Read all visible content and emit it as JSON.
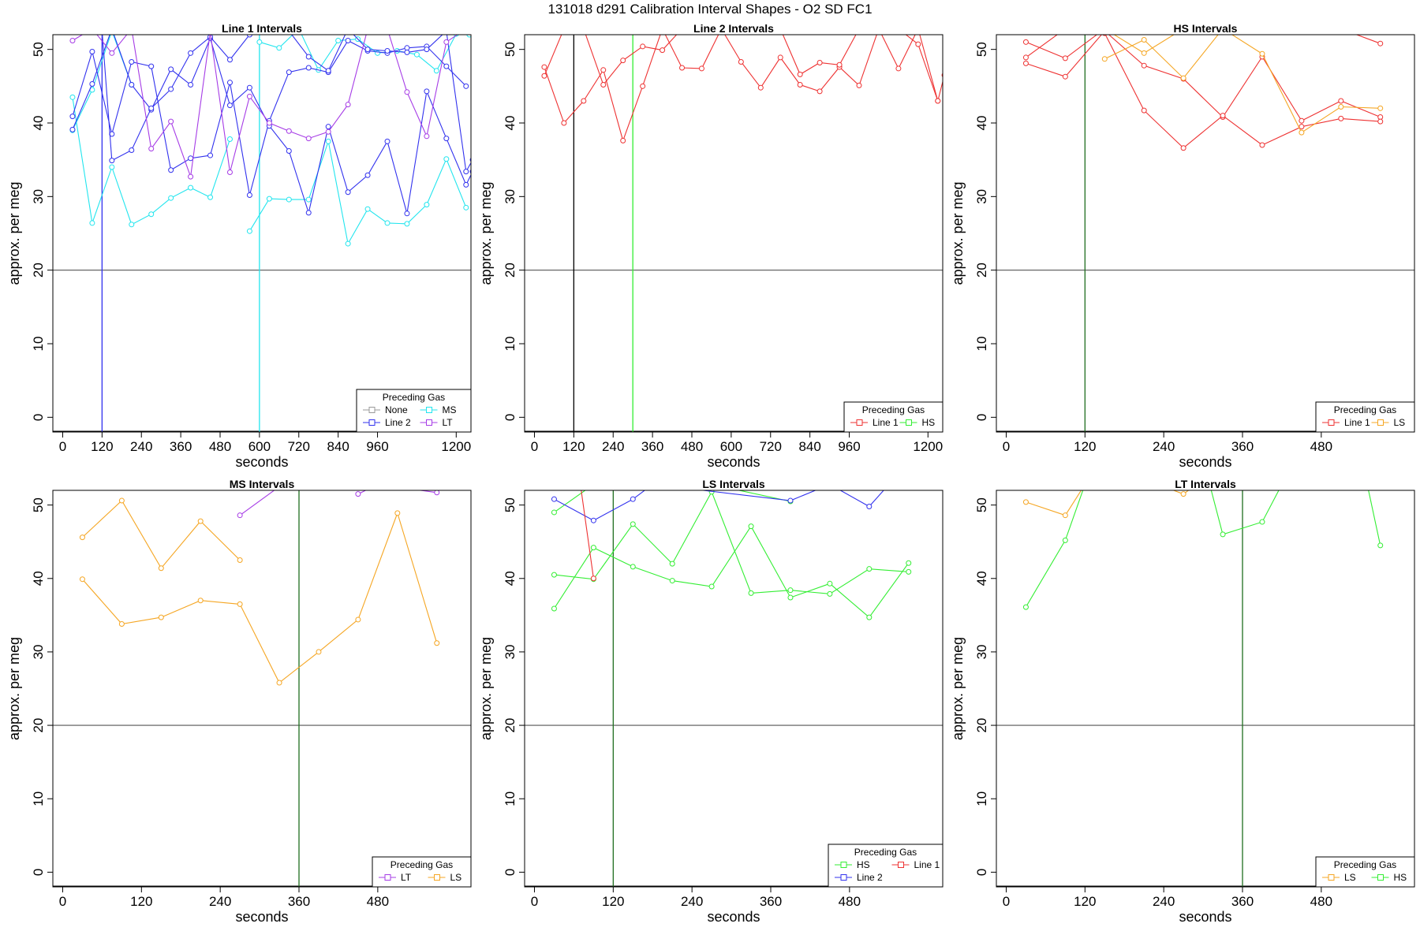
{
  "figure_title": "131018   d291   Calibration Interval Shapes - O2 SD FC1",
  "colors": {
    "None": "#999999",
    "MS": "#22e5ee",
    "Line 2": "#3232ee",
    "LT": "#a63ce6",
    "Line 1": "#ee3232",
    "HS": "#33ee33",
    "LS": "#f5a623",
    "black": "#000000",
    "dark_green": "#1f6f1f",
    "ref": "#555555"
  },
  "chart_data": [
    {
      "type": "line",
      "title": "Line 1 Intervals",
      "xlabel": "seconds",
      "ylabel": "approx. per meg",
      "xlim": [
        -30,
        1245
      ],
      "ylim": [
        -2,
        52
      ],
      "xticks": [
        0,
        120,
        240,
        360,
        480,
        600,
        720,
        840,
        960,
        1200
      ],
      "yticks": [
        0,
        10,
        20,
        30,
        40,
        50
      ],
      "hline": 20,
      "vlines": [
        {
          "x": 120,
          "color": "Line 2"
        },
        {
          "x": 600,
          "color": "MS"
        }
      ],
      "legend": {
        "title": "Preceding Gas",
        "columns": 2,
        "items": [
          "None",
          "MS",
          "Line 2",
          "LT"
        ]
      },
      "series": [
        {
          "name": "MS",
          "color": "MS",
          "x": [
            30,
            90,
            150,
            210,
            270,
            330,
            390,
            450,
            510
          ],
          "y": [
            43.5,
            26.4,
            34.0,
            26.2,
            27.6,
            29.8,
            31.2,
            29.9,
            37.8
          ]
        },
        {
          "name": "MS",
          "color": "MS",
          "x": [
            570,
            630,
            690,
            750,
            810,
            870,
            930,
            990,
            1050,
            1110,
            1170,
            1230
          ],
          "y": [
            25.3,
            29.7,
            29.6,
            29.6,
            37.5,
            23.6,
            28.3,
            26.4,
            26.3,
            28.9,
            35.1,
            28.5
          ]
        },
        {
          "name": "MS",
          "color": "MS",
          "x": [
            30,
            90,
            150,
            210
          ],
          "y": [
            39.0,
            44.5,
            52.5,
            45.2
          ]
        },
        {
          "name": "MS",
          "color": "MS",
          "x": [
            600,
            660,
            720,
            780,
            840,
            900,
            960,
            1020,
            1080,
            1140,
            1200,
            1240
          ],
          "y": [
            51.0,
            50.2,
            52.8,
            47.2,
            51.2,
            51.4,
            49.5,
            49.8,
            49.3,
            47.1,
            52.1,
            52.0
          ]
        },
        {
          "name": "Line 2",
          "color": "Line 2",
          "x": [
            30,
            90,
            150,
            210,
            270,
            330,
            390,
            450,
            510,
            570,
            630,
            690,
            750,
            810,
            870,
            930,
            990,
            1050,
            1110,
            1170,
            1230
          ],
          "y": [
            40.9,
            49.7,
            38.5,
            48.3,
            47.7,
            33.6,
            35.2,
            35.6,
            45.5,
            30.2,
            40.3,
            46.9,
            47.5,
            46.9,
            51.2,
            49.8,
            49.5,
            50.2,
            50.4,
            47.7,
            45.0
          ]
        },
        {
          "name": "Line 2",
          "color": "Line 2",
          "x": [
            30,
            90,
            150,
            210,
            270,
            330,
            390,
            450,
            510,
            570,
            630,
            690,
            750,
            810,
            870,
            930,
            990,
            1050,
            1110,
            1170,
            1230,
            1250
          ],
          "y": [
            39.1,
            45.3,
            52.8,
            45.2,
            41.8,
            47.3,
            45.2,
            51.5,
            42.4,
            44.8,
            39.6,
            36.2,
            27.8,
            39.5,
            30.6,
            32.9,
            37.5,
            27.7,
            44.3,
            37.9,
            31.6,
            33.4
          ]
        },
        {
          "name": "Line 2",
          "color": "Line 2",
          "x": [
            120,
            150,
            210,
            270,
            330,
            390,
            450,
            510,
            570,
            630,
            690,
            750,
            810,
            870,
            930,
            990,
            1050,
            1110,
            1170,
            1230,
            1250
          ],
          "y": [
            52.5,
            34.9,
            36.3,
            42.0,
            44.6,
            49.5,
            51.7,
            48.6,
            52.0,
            52.5,
            52.5,
            49.0,
            47.1,
            52.8,
            50.0,
            49.8,
            49.6,
            50.0,
            52.5,
            33.4,
            35.0
          ]
        },
        {
          "name": "LT",
          "color": "LT",
          "x": [
            30,
            90,
            150,
            210,
            270,
            330,
            390,
            450,
            510,
            570,
            630,
            690,
            750,
            810,
            870,
            930,
            990,
            1050,
            1110,
            1170,
            1230
          ],
          "y": [
            51.2,
            52.8,
            49.5,
            52.8,
            36.5,
            40.2,
            32.7,
            52.3,
            33.3,
            43.6,
            40.0,
            38.9,
            37.9,
            38.8,
            42.5,
            52.8,
            52.8,
            44.2,
            38.2,
            51.0,
            52.8
          ]
        }
      ]
    },
    {
      "type": "line",
      "title": "Line 2 Intervals",
      "xlabel": "seconds",
      "ylabel": "approx. per meg",
      "xlim": [
        -30,
        1245
      ],
      "ylim": [
        -2,
        52
      ],
      "xticks": [
        0,
        120,
        240,
        360,
        480,
        600,
        720,
        840,
        960,
        1200
      ],
      "yticks": [
        0,
        10,
        20,
        30,
        40,
        50
      ],
      "hline": 20,
      "vlines": [
        {
          "x": 120,
          "color": "black"
        },
        {
          "x": 300,
          "color": "HS"
        }
      ],
      "legend": {
        "title": "Preceding Gas",
        "columns": 2,
        "items": [
          "Line 1",
          "HS"
        ]
      },
      "series": [
        {
          "name": "Line 1",
          "color": "Line 1",
          "x": [
            30,
            90,
            150,
            210,
            270,
            330,
            390,
            450,
            510,
            570,
            630,
            690,
            750,
            810,
            870,
            930,
            990,
            1050,
            1110,
            1170,
            1230,
            1250
          ],
          "y": [
            47.6,
            40.0,
            43.0,
            47.2,
            37.6,
            45.0,
            52.8,
            47.5,
            47.4,
            52.8,
            48.3,
            44.8,
            48.9,
            45.2,
            44.3,
            47.6,
            45.1,
            52.8,
            47.4,
            52.8,
            43.0,
            46.5
          ]
        },
        {
          "name": "Line 1",
          "color": "Line 1",
          "x": [
            30,
            90,
            150,
            210,
            270,
            330,
            390,
            450,
            510,
            570,
            630,
            690,
            750,
            810,
            870,
            930,
            990,
            1050,
            1110,
            1170,
            1230
          ],
          "y": [
            46.4,
            52.8,
            52.8,
            45.2,
            48.5,
            50.4,
            49.9,
            52.8,
            52.8,
            52.8,
            52.8,
            52.8,
            52.8,
            46.6,
            48.2,
            47.9,
            52.8,
            52.8,
            52.8,
            50.7,
            43.0
          ]
        }
      ]
    },
    {
      "type": "line",
      "title": "HS Intervals",
      "xlabel": "seconds",
      "ylabel": "approx. per meg",
      "xlim": [
        -15,
        622
      ],
      "ylim": [
        -2,
        52
      ],
      "xticks": [
        0,
        120,
        240,
        360,
        480
      ],
      "yticks": [
        0,
        10,
        20,
        30,
        40,
        50
      ],
      "hline": 20,
      "vlines": [
        {
          "x": 120,
          "color": "dark_green"
        }
      ],
      "legend": {
        "title": "Preceding Gas",
        "columns": 2,
        "items": [
          "Line 1",
          "LS"
        ]
      },
      "series": [
        {
          "name": "Line 1",
          "color": "Line 1",
          "x": [
            30,
            90,
            150,
            210,
            270,
            330,
            390,
            450,
            510,
            570
          ],
          "y": [
            48.1,
            46.3,
            52.5,
            47.8,
            46.0,
            40.8,
            49.0,
            40.3,
            43.0,
            40.8
          ]
        },
        {
          "name": "Line 1",
          "color": "Line 1",
          "x": [
            30,
            90,
            150,
            210,
            270,
            330,
            390,
            450,
            510,
            570
          ],
          "y": [
            48.9,
            52.8,
            52.2,
            41.7,
            36.6,
            41.0,
            37.0,
            39.5,
            40.6,
            40.2
          ]
        },
        {
          "name": "Line 1",
          "color": "Line 1",
          "x": [
            30,
            90,
            150,
            210,
            270,
            330,
            390,
            450,
            510,
            570
          ],
          "y": [
            51.0,
            48.8,
            52.8,
            52.8,
            52.8,
            52.8,
            52.8,
            52.8,
            52.8,
            50.8
          ]
        },
        {
          "name": "LS",
          "color": "LS",
          "x": [
            150,
            210,
            270,
            330,
            390,
            450,
            510,
            570
          ],
          "y": [
            48.7,
            51.3,
            46.1,
            52.8,
            49.4,
            38.7,
            42.2,
            42.0
          ]
        },
        {
          "name": "LS",
          "color": "LS",
          "x": [
            150,
            210,
            270,
            330,
            390,
            450,
            510,
            570
          ],
          "y": [
            52.8,
            49.5,
            52.8,
            52.8,
            52.8,
            52.8,
            52.8,
            52.8
          ]
        }
      ]
    },
    {
      "type": "line",
      "title": "MS Intervals",
      "xlabel": "seconds",
      "ylabel": "approx. per meg",
      "xlim": [
        -15,
        622
      ],
      "ylim": [
        -2,
        52
      ],
      "xticks": [
        0,
        120,
        240,
        360,
        480
      ],
      "yticks": [
        0,
        10,
        20,
        30,
        40,
        50
      ],
      "hline": 20,
      "vlines": [
        {
          "x": 360,
          "color": "dark_green"
        }
      ],
      "legend": {
        "title": "Preceding Gas",
        "columns": 2,
        "items": [
          "LT",
          "LS"
        ]
      },
      "series": [
        {
          "name": "LS",
          "color": "LS",
          "x": [
            30,
            90,
            150,
            210,
            270
          ],
          "y": [
            45.6,
            50.6,
            41.4,
            47.8,
            42.5
          ]
        },
        {
          "name": "LS",
          "color": "LS",
          "x": [
            30,
            90,
            150,
            210,
            270,
            330,
            390,
            450,
            510,
            570
          ],
          "y": [
            39.9,
            33.8,
            34.7,
            37.0,
            36.5,
            25.8,
            30.0,
            34.4,
            48.9,
            31.2
          ]
        },
        {
          "name": "LT",
          "color": "LT",
          "x": [
            270,
            330
          ],
          "y": [
            48.6,
            52.5
          ]
        },
        {
          "name": "LT",
          "color": "LT",
          "x": [
            450,
            480,
            570
          ],
          "y": [
            51.5,
            52.8,
            51.7
          ]
        }
      ]
    },
    {
      "type": "line",
      "title": "LS Intervals",
      "xlabel": "seconds",
      "ylabel": "approx. per meg",
      "xlim": [
        -15,
        622
      ],
      "ylim": [
        -2,
        52
      ],
      "xticks": [
        0,
        120,
        240,
        360,
        480
      ],
      "yticks": [
        0,
        10,
        20,
        30,
        40,
        50
      ],
      "hline": 20,
      "vlines": [
        {
          "x": 120,
          "color": "dark_green"
        }
      ],
      "legend": {
        "title": "Preceding Gas",
        "columns": 2,
        "items": [
          "HS",
          "Line 1",
          "Line 2"
        ]
      },
      "series": [
        {
          "name": "HS",
          "color": "HS",
          "x": [
            30,
            90,
            150,
            210,
            270,
            330,
            390,
            450,
            510,
            570
          ],
          "y": [
            40.5,
            39.9,
            47.4,
            42.0,
            51.8,
            38.0,
            38.4,
            37.9,
            41.3,
            40.9
          ]
        },
        {
          "name": "HS",
          "color": "HS",
          "x": [
            30,
            90,
            150,
            210,
            270,
            330,
            390,
            450,
            510,
            570
          ],
          "y": [
            35.9,
            44.2,
            41.6,
            39.7,
            38.9,
            47.1,
            37.4,
            39.3,
            34.7,
            42.1
          ]
        },
        {
          "name": "HS",
          "color": "HS",
          "x": [
            30,
            90,
            270,
            390
          ],
          "y": [
            49.0,
            52.8,
            52.8,
            50.5
          ]
        },
        {
          "name": "Line 2",
          "color": "Line 2",
          "x": [
            30,
            90,
            150,
            180,
            390,
            450,
            510,
            540
          ],
          "y": [
            50.8,
            47.9,
            50.8,
            52.8,
            50.6,
            52.8,
            49.8,
            52.8
          ]
        },
        {
          "name": "Line 1",
          "color": "Line 1",
          "x": [
            70,
            90
          ],
          "y": [
            52.8,
            40.0
          ]
        }
      ]
    },
    {
      "type": "line",
      "title": "LT Intervals",
      "xlabel": "seconds",
      "ylabel": "approx. per meg",
      "xlim": [
        -15,
        622
      ],
      "ylim": [
        -2,
        52
      ],
      "xticks": [
        0,
        120,
        240,
        360,
        480
      ],
      "yticks": [
        0,
        10,
        20,
        30,
        40,
        50
      ],
      "hline": 20,
      "vlines": [
        {
          "x": 360,
          "color": "dark_green"
        }
      ],
      "legend": {
        "title": "Preceding Gas",
        "columns": 2,
        "items": [
          "LS",
          "HS"
        ]
      },
      "series": [
        {
          "name": "LS",
          "color": "LS",
          "x": [
            30,
            90,
            120
          ],
          "y": [
            50.4,
            48.6,
            52.8
          ]
        },
        {
          "name": "LS",
          "color": "LS",
          "x": [
            240,
            270,
            290
          ],
          "y": [
            52.5,
            51.5,
            52.8
          ]
        },
        {
          "name": "HS",
          "color": "HS",
          "x": [
            30,
            90,
            120
          ],
          "y": [
            36.1,
            45.2,
            52.8
          ]
        },
        {
          "name": "HS",
          "color": "HS",
          "x": [
            310,
            330,
            390,
            420
          ],
          "y": [
            52.8,
            46.0,
            47.7,
            52.8
          ]
        },
        {
          "name": "HS",
          "color": "HS",
          "x": [
            550,
            570
          ],
          "y": [
            52.8,
            44.5
          ]
        }
      ]
    }
  ]
}
